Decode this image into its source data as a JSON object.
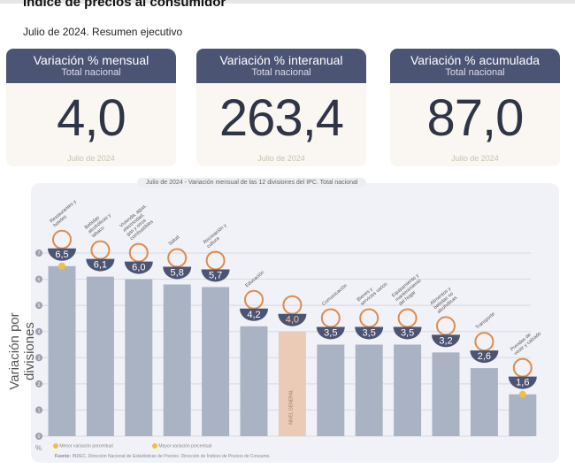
{
  "title": "Índice de precios al consumidor",
  "subtitle": "Julio de 2024. Resumen ejecutivo",
  "cards": [
    {
      "label": "Variación % mensual",
      "sub": "Total nacional",
      "value": "4,0",
      "date": "Julio de 2024"
    },
    {
      "label": "Variación % interanual",
      "sub": "Total nacional",
      "value": "263,4",
      "date": "Julio de 2024"
    },
    {
      "label": "Variación % acumulada",
      "sub": "Total nacional",
      "value": "87,0",
      "date": "Julio de 2024"
    }
  ],
  "chart_data": {
    "type": "bar",
    "title": "Julio de 2024 - Variación mensual de las 12 divisiones del IPC. Total nacional",
    "ylabel": "Variación por divisiones",
    "yunit": "%",
    "ylim": [
      0,
      7
    ],
    "yticks": [
      0,
      1,
      2,
      3,
      4,
      5,
      6,
      7
    ],
    "grid": true,
    "categories": [
      "Restaurantes y hoteles",
      "Bebidas alcohólicas y tabaco",
      "Vivienda, agua, electricidad, gas y otros combustibles",
      "Salud",
      "Recreación y cultura",
      "Educación",
      "Nivel general",
      "Comunicación",
      "Bienes y servicios varios",
      "Equipamiento y mantenimiento del hogar",
      "Alimentos y bebidas no alcohólicas",
      "Transporte",
      "Prendas de vestir y calzado"
    ],
    "values": [
      6.5,
      6.1,
      6.0,
      5.8,
      5.7,
      4.2,
      4.0,
      3.5,
      3.5,
      3.5,
      3.2,
      2.6,
      1.6
    ],
    "value_labels": [
      "6,5",
      "6,1",
      "6,0",
      "5,8",
      "5,7",
      "4,2",
      "4,0",
      "3,5",
      "3,5",
      "3,5",
      "3,2",
      "2,6",
      "1,6"
    ],
    "bar_label_general": "NIVEL GENERAL",
    "colors": {
      "bar": "#aab3c3",
      "general": "#ebcbb5",
      "badge": "#4b5473",
      "icon": "#e08a4a",
      "marker": "#f0c040"
    },
    "legend": [
      "Menor variación porcentual",
      "Mayor variación porcentual"
    ],
    "source_label": "Fuente:",
    "source": "INDEC, Dirección Nacional de Estadísticas de Precios. Dirección de Índices de Precios de Consumo."
  }
}
